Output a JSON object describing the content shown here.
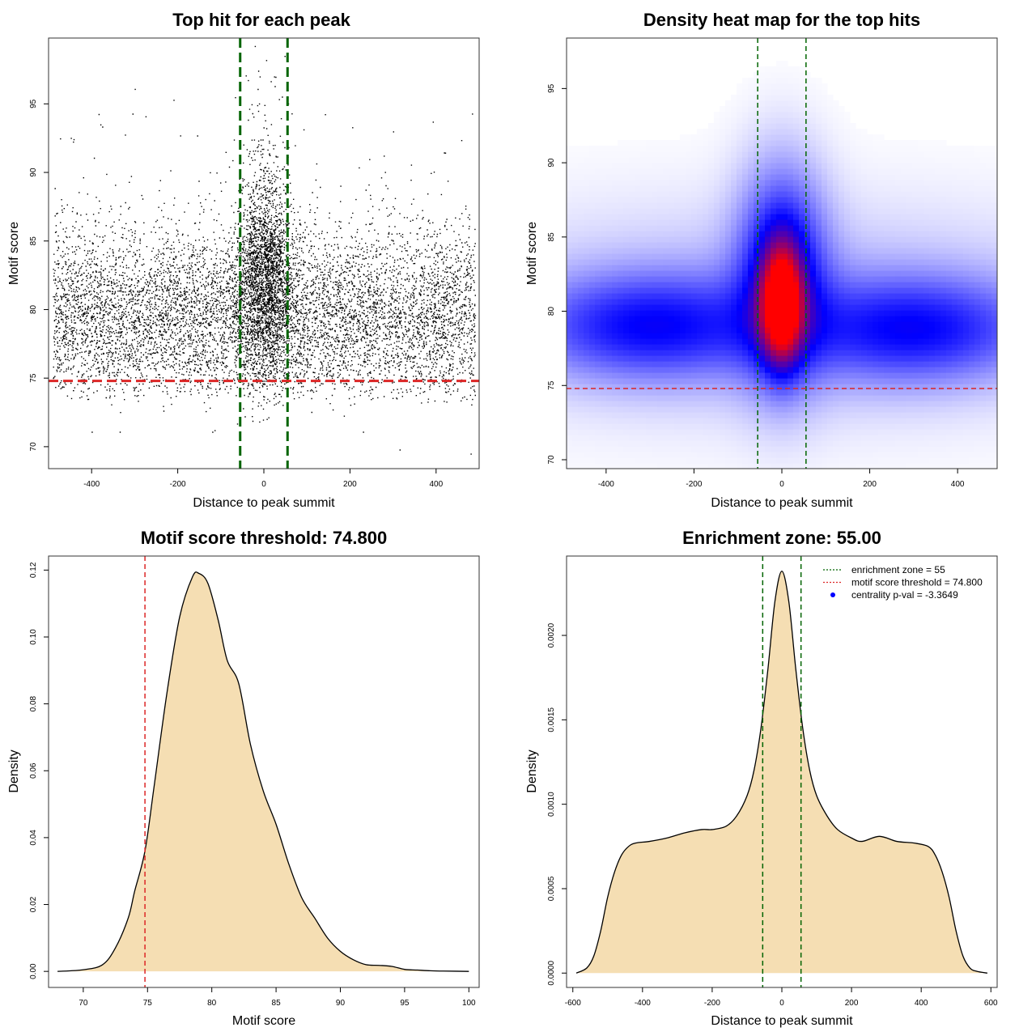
{
  "chart_data": [
    {
      "type": "scatter",
      "title": "Top hit for each peak",
      "xlabel": "Distance to peak summit",
      "ylabel": "Motif score",
      "xlim": [
        -500,
        500
      ],
      "ylim": [
        68.4,
        99.8
      ],
      "xticks": [
        -400,
        -200,
        0,
        200,
        400
      ],
      "xtick_labels": [
        "-400",
        "-200",
        "0",
        "200",
        "400"
      ],
      "yticks": [
        70,
        75,
        80,
        85,
        90,
        95
      ],
      "ytick_labels": [
        "70",
        "75",
        "80",
        "85",
        "90",
        "95"
      ],
      "vlines": [
        -55,
        55
      ],
      "hline": 74.8,
      "vline_color": "#006400",
      "hline_color": "#dc2626",
      "point_color": "#000000",
      "description": "approx 10,000 points: uniform in distance between -490 and 490, scores mostly 74-86 with a dense central cluster near 0 reaching up to 98",
      "central_outliers": [
        [
          5,
          98.2
        ],
        [
          48,
          98.5
        ],
        [
          -10,
          97.0
        ],
        [
          25,
          96.3
        ],
        [
          500,
          96.4
        ],
        [
          -300,
          96.1
        ],
        [
          -210,
          95.3
        ],
        [
          -275,
          94.1
        ],
        [
          -70,
          92.4
        ],
        [
          -155,
          92.7
        ],
        [
          300,
          93.0
        ],
        [
          205,
          93.3
        ],
        [
          315,
          69.8
        ],
        [
          480,
          69.5
        ],
        [
          -400,
          71.1
        ],
        [
          -335,
          71.1
        ],
        [
          -120,
          71.1
        ],
        [
          230,
          71.1
        ]
      ]
    },
    {
      "type": "heatmap",
      "title": "Density heat map for the top hits",
      "xlabel": "Distance to peak summit",
      "ylabel": "Motif score",
      "xlim": [
        -490,
        490
      ],
      "ylim": [
        69.4,
        98.4
      ],
      "xticks": [
        -400,
        -200,
        0,
        200,
        400
      ],
      "xtick_labels": [
        "-400",
        "-200",
        "0",
        "200",
        "400"
      ],
      "yticks": [
        70,
        75,
        80,
        85,
        90,
        95
      ],
      "ytick_labels": [
        "70",
        "75",
        "80",
        "85",
        "90",
        "95"
      ],
      "vlines": [
        -55,
        55
      ],
      "hline": 74.8,
      "colors": [
        "#ffffff",
        "#0000ff",
        "#ff0000"
      ],
      "density_blobs": [
        {
          "x": 0,
          "y": 80.5,
          "sx": 30,
          "sy": 2.6,
          "w": 1.0
        },
        {
          "x": 0,
          "y": 82.5,
          "sx": 65,
          "sy": 4.5,
          "w": 0.55
        },
        {
          "x": -300,
          "y": 79.0,
          "sx": 180,
          "sy": 2.3,
          "w": 0.42
        },
        {
          "x": 300,
          "y": 78.8,
          "sx": 180,
          "sy": 2.3,
          "w": 0.42
        },
        {
          "x": 0,
          "y": 80.0,
          "sx": 500,
          "sy": 4.5,
          "w": 0.12
        }
      ]
    },
    {
      "type": "area",
      "title": "Motif score threshold: 74.800",
      "xlabel": "Motif score",
      "ylabel": "Density",
      "xlim": [
        67.3,
        100.8
      ],
      "ylim": [
        -0.0048,
        0.1242
      ],
      "xticks": [
        70,
        75,
        80,
        85,
        90,
        95,
        100
      ],
      "xtick_labels": [
        "70",
        "75",
        "80",
        "85",
        "90",
        "95",
        "100"
      ],
      "yticks": [
        0,
        0.02,
        0.04,
        0.06,
        0.08,
        0.1,
        0.12
      ],
      "ytick_labels": [
        "0.00",
        "0.02",
        "0.04",
        "0.06",
        "0.08",
        "0.10",
        "0.12"
      ],
      "vline": 74.8,
      "fill": "#f5deb3",
      "x": [
        68.0,
        70.0,
        71.5,
        72.5,
        73.5,
        74.0,
        74.8,
        75.5,
        76.5,
        77.5,
        78.5,
        79.0,
        79.7,
        80.5,
        81.2,
        82.1,
        83.0,
        84.0,
        85.0,
        86.0,
        87.0,
        88.0,
        89.0,
        90.0,
        91.0,
        92.0,
        93.0,
        94.0,
        95.0,
        96.0,
        97.0,
        98.0,
        100.0
      ],
      "y": [
        0.0,
        0.0005,
        0.002,
        0.007,
        0.016,
        0.024,
        0.036,
        0.055,
        0.083,
        0.106,
        0.118,
        0.119,
        0.116,
        0.105,
        0.093,
        0.086,
        0.068,
        0.054,
        0.044,
        0.032,
        0.022,
        0.016,
        0.01,
        0.006,
        0.0035,
        0.002,
        0.0018,
        0.0015,
        0.0006,
        0.0004,
        0.0002,
        0.0001,
        0.0
      ]
    },
    {
      "type": "area",
      "title": "Enrichment zone: 55.00",
      "xlabel": "Distance to peak summit",
      "ylabel": "Density",
      "xlim": [
        -618,
        618
      ],
      "ylim": [
        -8.5e-05,
        0.00247
      ],
      "xticks": [
        -600,
        -400,
        -200,
        0,
        200,
        400,
        600
      ],
      "xtick_labels": [
        "-600",
        "-400",
        "-200",
        "0",
        "200",
        "400",
        "600"
      ],
      "yticks": [
        0,
        0.0005,
        0.001,
        0.0015,
        0.002
      ],
      "ytick_labels": [
        "0.0000",
        "0.0005",
        "0.0010",
        "0.0015",
        "0.0020"
      ],
      "vlines": [
        -55,
        55
      ],
      "fill": "#f5deb3",
      "x": [
        -590,
        -560,
        -540,
        -520,
        -500,
        -480,
        -460,
        -440,
        -420,
        -380,
        -330,
        -280,
        -230,
        -200,
        -160,
        -130,
        -100,
        -80,
        -60,
        -40,
        -20,
        0,
        20,
        40,
        60,
        80,
        100,
        130,
        160,
        200,
        230,
        280,
        330,
        380,
        420,
        440,
        460,
        480,
        500,
        520,
        540,
        560,
        590
      ],
      "y": [
        0.0,
        3e-05,
        0.0001,
        0.00025,
        0.00045,
        0.0006,
        0.0007,
        0.00075,
        0.00077,
        0.00078,
        0.0008,
        0.00083,
        0.00085,
        0.00085,
        0.00087,
        0.00093,
        0.00105,
        0.0012,
        0.00145,
        0.0018,
        0.0022,
        0.00238,
        0.0022,
        0.0018,
        0.00145,
        0.0012,
        0.00105,
        0.00093,
        0.00085,
        0.0008,
        0.00078,
        0.00081,
        0.00078,
        0.00077,
        0.00075,
        0.0007,
        0.0006,
        0.00045,
        0.00025,
        0.0001,
        3e-05,
        1e-05,
        0.0
      ],
      "legend": {
        "placement": "top-right",
        "entries": [
          {
            "label": "enrichment zone = 55",
            "color": "#006400",
            "symbol": "dotted-line"
          },
          {
            "label": "motif score threshold = 74.800",
            "color": "#dc2626",
            "symbol": "dotted-line"
          },
          {
            "label": "centrality p-val = -3.3649",
            "color": "#0000ff",
            "symbol": "dot"
          }
        ]
      }
    }
  ]
}
